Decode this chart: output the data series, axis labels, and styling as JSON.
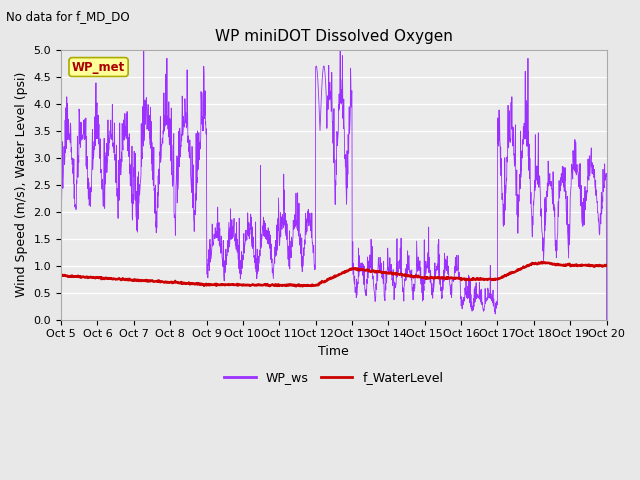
{
  "title": "WP miniDOT Dissolved Oxygen",
  "subtitle": "No data for f_MD_DO",
  "ylabel": "Wind Speed (m/s), Water Level (psi)",
  "xlabel": "Time",
  "ylim": [
    0.0,
    5.0
  ],
  "yticks": [
    0.0,
    0.5,
    1.0,
    1.5,
    2.0,
    2.5,
    3.0,
    3.5,
    4.0,
    4.5,
    5.0
  ],
  "xlim": [
    0,
    15
  ],
  "xtick_labels": [
    "Oct 5",
    "Oct 6",
    "Oct 7",
    "Oct 8",
    "Oct 9",
    "Oct 10",
    "Oct 11",
    "Oct 12",
    "Oct 13",
    "Oct 14",
    "Oct 15",
    "Oct 16",
    "Oct 17",
    "Oct 18",
    "Oct 19",
    "Oct 20"
  ],
  "wp_ws_color": "#9B30FF",
  "f_wl_color": "#CC0000",
  "legend_box_facecolor": "#FFFF99",
  "legend_box_edgecolor": "#AAAA00",
  "legend_box_text": "WP_met",
  "legend_box_text_color": "#AA0000",
  "fig_bg_color": "#E8E8E8",
  "plot_bg_color": "#EBEBEB",
  "grid_color": "#FFFFFF",
  "title_fontsize": 11,
  "label_fontsize": 9,
  "tick_fontsize": 8
}
